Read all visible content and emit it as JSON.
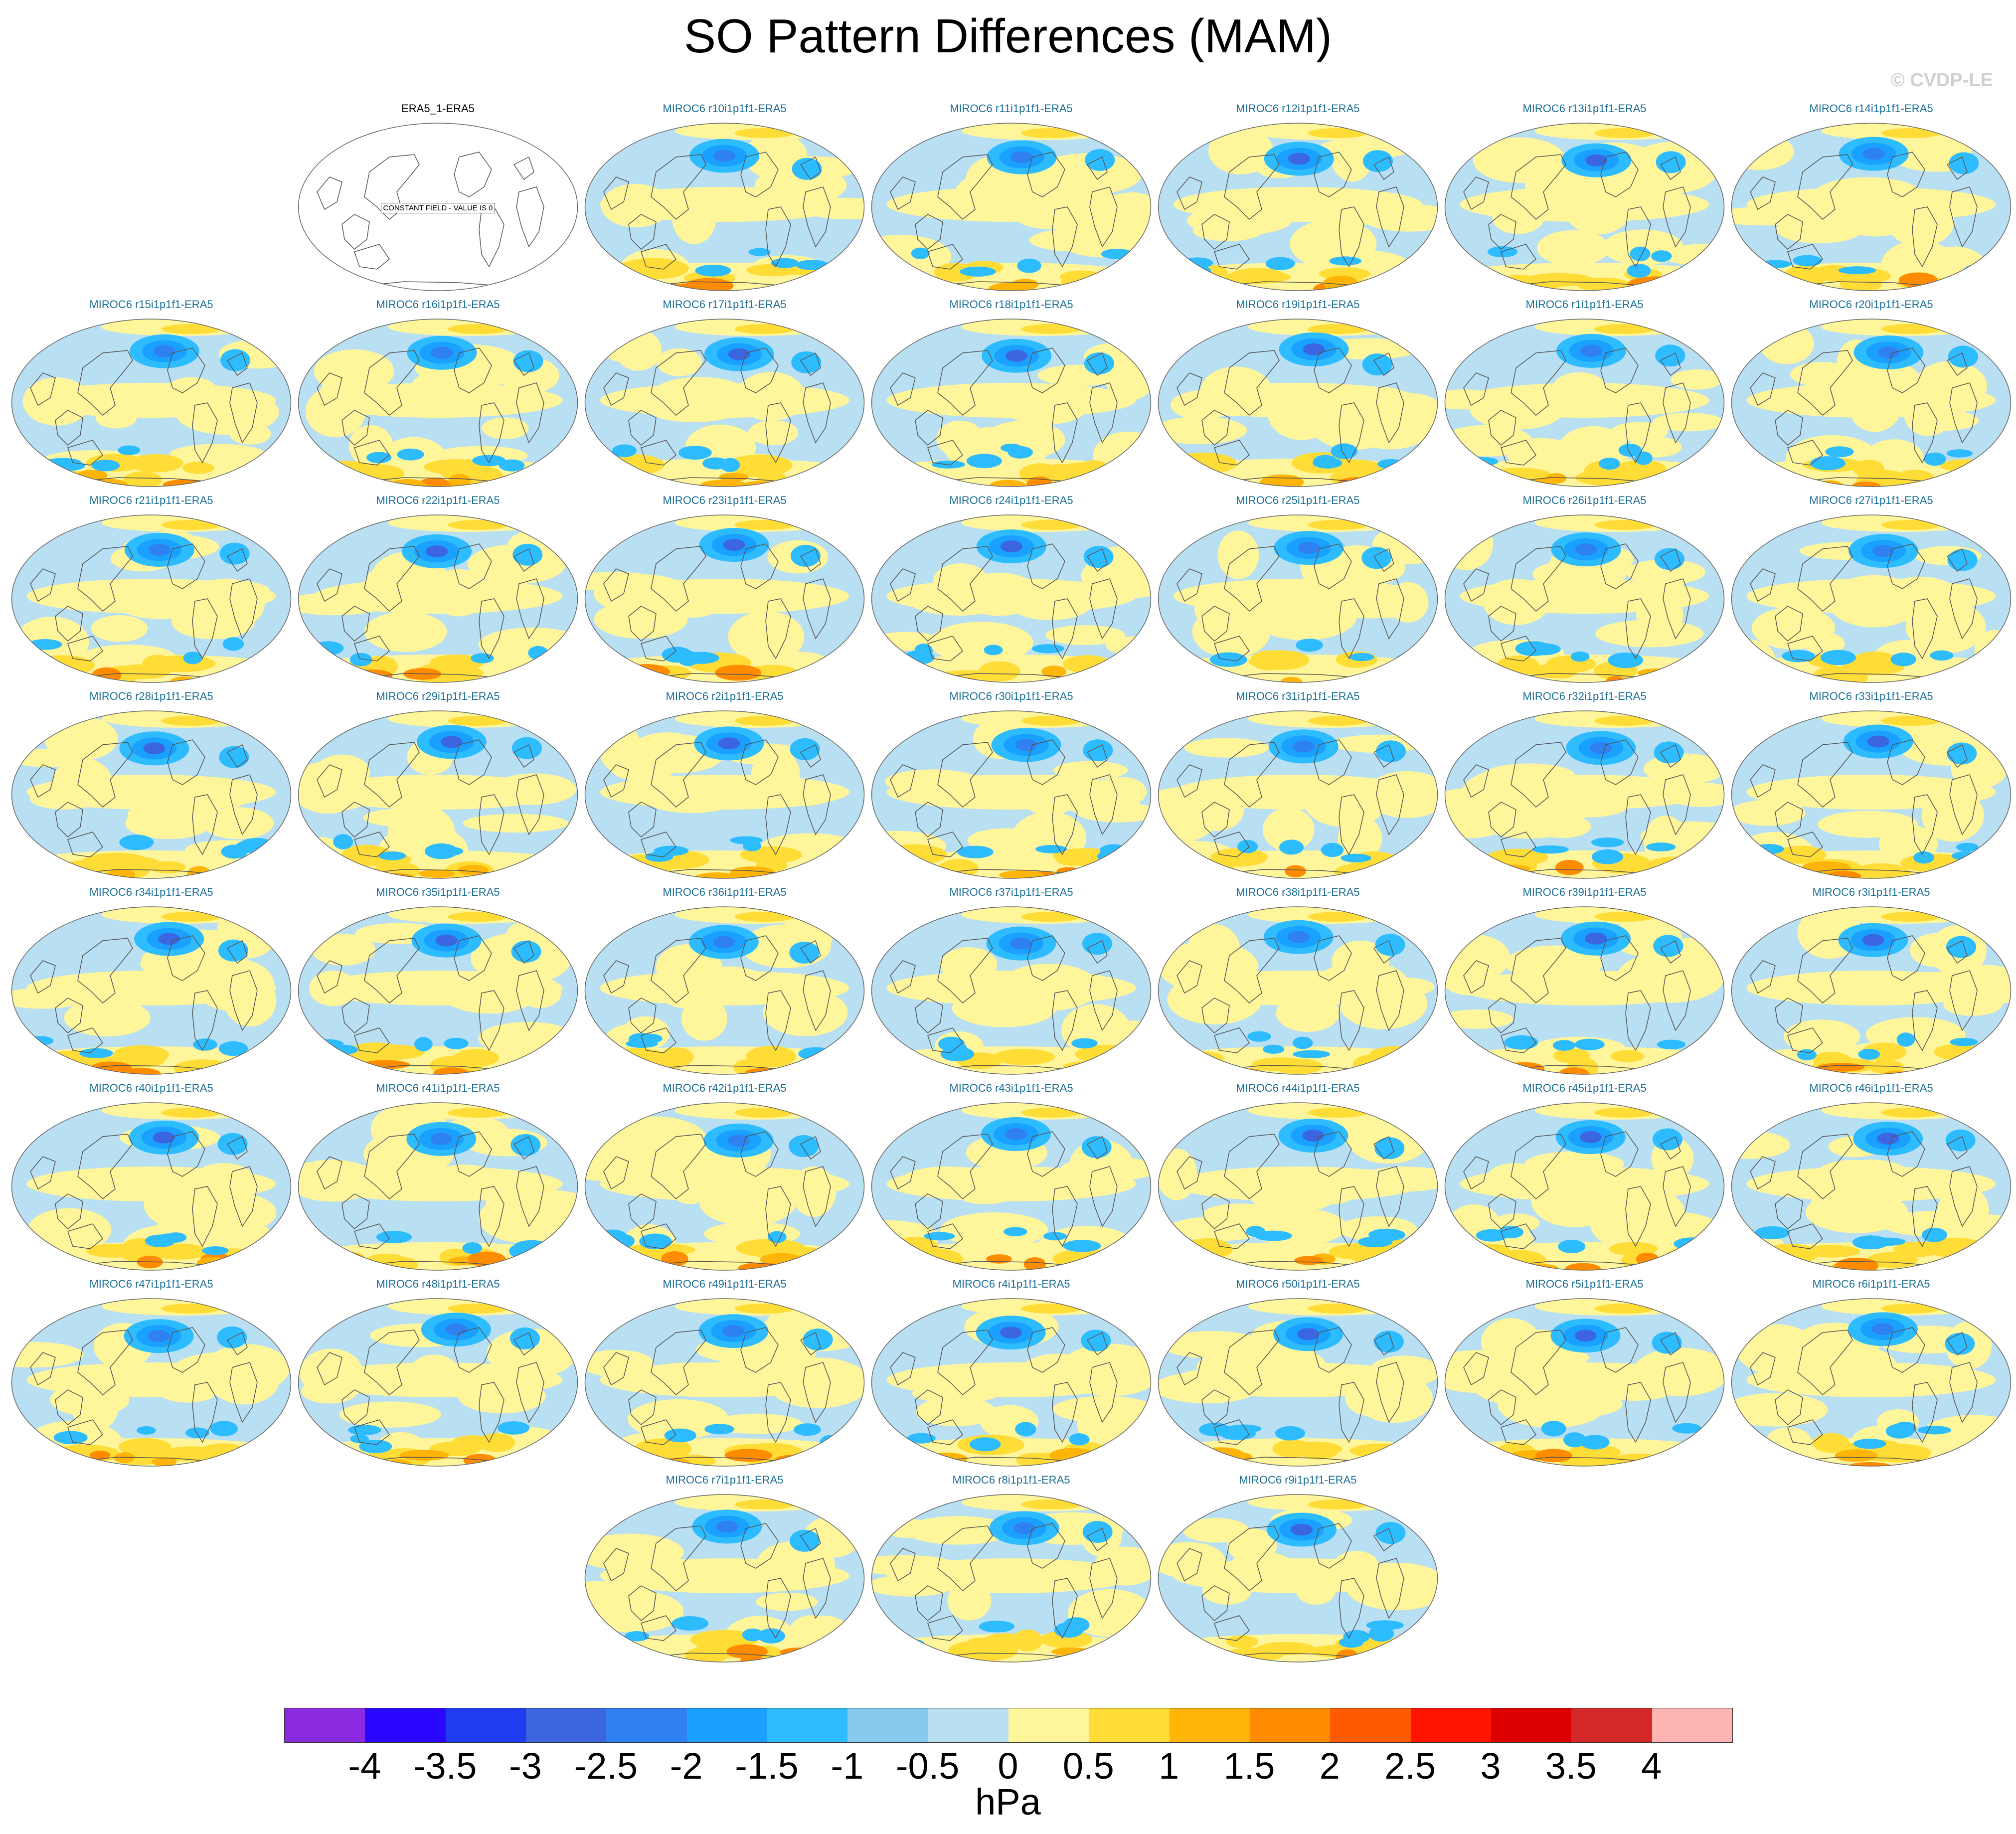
{
  "title": "SO Pattern Differences (MAM)",
  "copyright": "© CVDP-LE",
  "panels": [
    {
      "label": "ERA5_1-ERA5",
      "constant": true,
      "note": "CONSTANT FIELD - VALUE IS 0"
    },
    {
      "label": "MIROC6 r10i1p1f1-ERA5"
    },
    {
      "label": "MIROC6 r11i1p1f1-ERA5"
    },
    {
      "label": "MIROC6 r12i1p1f1-ERA5"
    },
    {
      "label": "MIROC6 r13i1p1f1-ERA5"
    },
    {
      "label": "MIROC6 r14i1p1f1-ERA5"
    },
    {
      "label": "MIROC6 r15i1p1f1-ERA5"
    },
    {
      "label": "MIROC6 r16i1p1f1-ERA5"
    },
    {
      "label": "MIROC6 r17i1p1f1-ERA5"
    },
    {
      "label": "MIROC6 r18i1p1f1-ERA5"
    },
    {
      "label": "MIROC6 r19i1p1f1-ERA5"
    },
    {
      "label": "MIROC6 r1i1p1f1-ERA5"
    },
    {
      "label": "MIROC6 r20i1p1f1-ERA5"
    },
    {
      "label": "MIROC6 r21i1p1f1-ERA5"
    },
    {
      "label": "MIROC6 r22i1p1f1-ERA5"
    },
    {
      "label": "MIROC6 r23i1p1f1-ERA5"
    },
    {
      "label": "MIROC6 r24i1p1f1-ERA5"
    },
    {
      "label": "MIROC6 r25i1p1f1-ERA5"
    },
    {
      "label": "MIROC6 r26i1p1f1-ERA5"
    },
    {
      "label": "MIROC6 r27i1p1f1-ERA5"
    },
    {
      "label": "MIROC6 r28i1p1f1-ERA5"
    },
    {
      "label": "MIROC6 r29i1p1f1-ERA5"
    },
    {
      "label": "MIROC6 r2i1p1f1-ERA5"
    },
    {
      "label": "MIROC6 r30i1p1f1-ERA5"
    },
    {
      "label": "MIROC6 r31i1p1f1-ERA5"
    },
    {
      "label": "MIROC6 r32i1p1f1-ERA5"
    },
    {
      "label": "MIROC6 r33i1p1f1-ERA5"
    },
    {
      "label": "MIROC6 r34i1p1f1-ERA5"
    },
    {
      "label": "MIROC6 r35i1p1f1-ERA5"
    },
    {
      "label": "MIROC6 r36i1p1f1-ERA5"
    },
    {
      "label": "MIROC6 r37i1p1f1-ERA5"
    },
    {
      "label": "MIROC6 r38i1p1f1-ERA5"
    },
    {
      "label": "MIROC6 r39i1p1f1-ERA5"
    },
    {
      "label": "MIROC6 r3i1p1f1-ERA5"
    },
    {
      "label": "MIROC6 r40i1p1f1-ERA5"
    },
    {
      "label": "MIROC6 r41i1p1f1-ERA5"
    },
    {
      "label": "MIROC6 r42i1p1f1-ERA5"
    },
    {
      "label": "MIROC6 r43i1p1f1-ERA5"
    },
    {
      "label": "MIROC6 r44i1p1f1-ERA5"
    },
    {
      "label": "MIROC6 r45i1p1f1-ERA5"
    },
    {
      "label": "MIROC6 r46i1p1f1-ERA5"
    },
    {
      "label": "MIROC6 r47i1p1f1-ERA5"
    },
    {
      "label": "MIROC6 r48i1p1f1-ERA5"
    },
    {
      "label": "MIROC6 r49i1p1f1-ERA5"
    },
    {
      "label": "MIROC6 r4i1p1f1-ERA5"
    },
    {
      "label": "MIROC6 r50i1p1f1-ERA5"
    },
    {
      "label": "MIROC6 r5i1p1f1-ERA5"
    },
    {
      "label": "MIROC6 r6i1p1f1-ERA5"
    },
    {
      "label": "MIROC6 r7i1p1f1-ERA5"
    },
    {
      "label": "MIROC6 r8i1p1f1-ERA5"
    },
    {
      "label": "MIROC6 r9i1p1f1-ERA5"
    }
  ],
  "colorbar": {
    "colors": [
      "#8a2be2",
      "#2a08ff",
      "#1f3cf0",
      "#3b66e0",
      "#2f80f0",
      "#1aa0ff",
      "#2cbcff",
      "#86caf0",
      "#b9dff2",
      "#fff59a",
      "#ffdc36",
      "#ffb408",
      "#ff8c00",
      "#ff5a00",
      "#ff1400",
      "#dc0000",
      "#d42828",
      "#ffb4b4"
    ],
    "labels": [
      "-4",
      "-3.5",
      "-3",
      "-2.5",
      "-2",
      "-1.5",
      "-1",
      "-0.5",
      "0",
      "0.5",
      "1",
      "1.5",
      "2",
      "2.5",
      "3",
      "3.5",
      "4"
    ],
    "units": "hPa"
  }
}
